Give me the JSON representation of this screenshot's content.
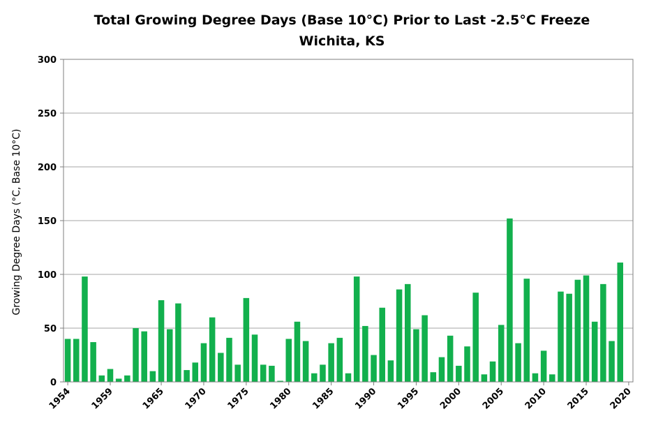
{
  "chart_data": {
    "type": "bar",
    "title": "Total Growing Degree Days (Base 10°C) Prior to Last -2.5°C Freeze",
    "subtitle": "Wichita, KS",
    "xlabel": "",
    "ylabel": "Growing Degree Days (°C, Base 10°C)",
    "ylim": [
      0,
      300
    ],
    "yticks": [
      "0",
      "50",
      "100",
      "150",
      "200",
      "250",
      "300"
    ],
    "xtick_labels": [
      "1954",
      "1959",
      "1965",
      "1970",
      "1975",
      "1980",
      "1985",
      "1990",
      "1995",
      "2000",
      "2005",
      "2010",
      "2015",
      "2020"
    ],
    "grid": true,
    "bar_color": "#12b04d",
    "x": [
      1954,
      1955,
      1956,
      1957,
      1958,
      1959,
      1960,
      1961,
      1962,
      1963,
      1964,
      1965,
      1966,
      1967,
      1968,
      1969,
      1970,
      1971,
      1972,
      1973,
      1974,
      1975,
      1976,
      1977,
      1978,
      1979,
      1980,
      1981,
      1982,
      1983,
      1984,
      1985,
      1986,
      1987,
      1988,
      1989,
      1990,
      1991,
      1992,
      1993,
      1994,
      1995,
      1996,
      1997,
      1998,
      1999,
      2000,
      2001,
      2002,
      2003,
      2004,
      2005,
      2006,
      2007,
      2008,
      2009,
      2010,
      2011,
      2012,
      2013,
      2014,
      2015,
      2016,
      2017,
      2018,
      2019,
      2020
    ],
    "values": [
      40,
      40,
      98,
      37,
      6,
      12,
      3,
      6,
      50,
      47,
      10,
      76,
      49,
      73,
      11,
      18,
      36,
      60,
      27,
      41,
      16,
      78,
      44,
      16,
      15,
      1,
      40,
      56,
      38,
      8,
      16,
      36,
      41,
      8,
      98,
      52,
      25,
      69,
      20,
      86,
      91,
      49,
      62,
      9,
      23,
      43,
      15,
      33,
      83,
      7,
      19,
      53,
      152,
      36,
      96,
      8,
      29,
      7,
      84,
      82,
      95,
      99,
      56,
      91,
      38,
      111,
      0
    ]
  }
}
